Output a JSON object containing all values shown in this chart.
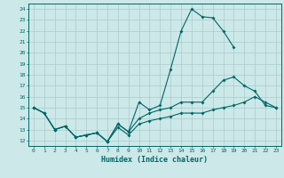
{
  "xlabel": "Humidex (Indice chaleur)",
  "xlim": [
    -0.5,
    23.5
  ],
  "ylim": [
    11.5,
    24.5
  ],
  "xticks": [
    0,
    1,
    2,
    3,
    4,
    5,
    6,
    7,
    8,
    9,
    10,
    11,
    12,
    13,
    14,
    15,
    16,
    17,
    18,
    19,
    20,
    21,
    22,
    23
  ],
  "yticks": [
    12,
    13,
    14,
    15,
    16,
    17,
    18,
    19,
    20,
    21,
    22,
    23,
    24
  ],
  "bg_color": "#cce8e8",
  "grid_color": "#aacccc",
  "line_color": "#006666",
  "line1_y": [
    15.0,
    14.5,
    13.0,
    13.3,
    12.3,
    12.5,
    12.7,
    11.9,
    13.5,
    12.8,
    15.5,
    14.8,
    15.2,
    18.5,
    22.0,
    24.0,
    23.3,
    23.2,
    22.0,
    20.5,
    null,
    null,
    null,
    null
  ],
  "line2_y": [
    15.0,
    14.5,
    13.0,
    13.3,
    12.3,
    12.5,
    12.7,
    11.9,
    13.5,
    12.8,
    14.0,
    14.5,
    14.8,
    15.0,
    15.5,
    15.5,
    15.5,
    16.5,
    17.5,
    17.8,
    17.0,
    16.5,
    15.2,
    15.0
  ],
  "line3_y": [
    15.0,
    14.5,
    13.0,
    13.3,
    12.3,
    12.5,
    12.7,
    11.9,
    13.2,
    12.5,
    13.5,
    13.8,
    14.0,
    14.2,
    14.5,
    14.5,
    14.5,
    14.8,
    15.0,
    15.2,
    15.5,
    16.0,
    15.5,
    15.0
  ]
}
